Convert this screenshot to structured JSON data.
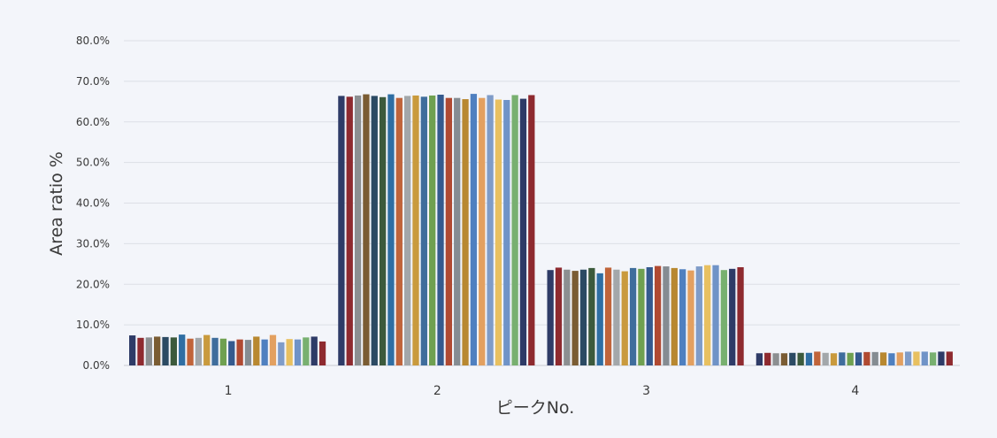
{
  "chart_data": {
    "type": "bar",
    "categories": [
      "1",
      "2",
      "3",
      "4"
    ],
    "xlabel": "ピークNo.",
    "ylabel": "Area ratio %",
    "ylim": [
      0,
      80
    ],
    "yticks": [
      "0.0%",
      "10.0%",
      "20.0%",
      "30.0%",
      "40.0%",
      "50.0%",
      "60.0%",
      "70.0%",
      "80.0%"
    ],
    "grid": true,
    "colors": [
      "#2e3b67",
      "#8e2a2f",
      "#8c8f91",
      "#7a5c33",
      "#2b4a63",
      "#3c5a3c",
      "#2f6ea3",
      "#c0643a",
      "#a3a7aa",
      "#c99a3d",
      "#3f6d9c",
      "#6fa050",
      "#355a8e",
      "#b04a32",
      "#858c92",
      "#b88830",
      "#4f80c0",
      "#e3a060",
      "#7f9cc8",
      "#e8c060",
      "#6f93c7",
      "#78b070"
    ],
    "series": [
      {
        "values": [
          7.4,
          66.4,
          23.5,
          3.0
        ]
      },
      {
        "values": [
          6.8,
          66.2,
          24.1,
          3.1
        ]
      },
      {
        "values": [
          6.9,
          66.5,
          23.6,
          3.0
        ]
      },
      {
        "values": [
          7.1,
          66.8,
          23.3,
          3.0
        ]
      },
      {
        "values": [
          7.0,
          66.4,
          23.6,
          3.1
        ]
      },
      {
        "values": [
          6.9,
          66.1,
          24.0,
          3.1
        ]
      },
      {
        "values": [
          7.6,
          66.8,
          22.7,
          3.1
        ]
      },
      {
        "values": [
          6.6,
          65.9,
          24.1,
          3.4
        ]
      },
      {
        "values": [
          6.8,
          66.4,
          23.6,
          3.1
        ]
      },
      {
        "values": [
          7.5,
          66.5,
          23.2,
          3.0
        ]
      },
      {
        "values": [
          6.8,
          66.2,
          24.0,
          3.2
        ]
      },
      {
        "values": [
          6.6,
          66.5,
          23.8,
          3.1
        ]
      },
      {
        "values": [
          6.0,
          66.7,
          24.2,
          3.2
        ]
      },
      {
        "values": [
          6.4,
          65.9,
          24.5,
          3.3
        ]
      },
      {
        "values": [
          6.3,
          65.9,
          24.4,
          3.3
        ]
      },
      {
        "values": [
          7.1,
          65.6,
          24.0,
          3.2
        ]
      },
      {
        "values": [
          6.4,
          66.9,
          23.7,
          3.0
        ]
      },
      {
        "values": [
          7.5,
          65.9,
          23.4,
          3.2
        ]
      },
      {
        "values": [
          5.7,
          66.6,
          24.4,
          3.4
        ]
      },
      {
        "values": [
          6.5,
          65.5,
          24.7,
          3.4
        ]
      },
      {
        "values": [
          6.4,
          65.4,
          24.7,
          3.4
        ]
      },
      {
        "values": [
          6.9,
          66.6,
          23.5,
          3.2
        ]
      },
      {
        "values": [
          7.1,
          65.7,
          23.8,
          3.4
        ]
      },
      {
        "values": [
          5.9,
          66.6,
          24.2,
          3.4
        ]
      }
    ]
  }
}
